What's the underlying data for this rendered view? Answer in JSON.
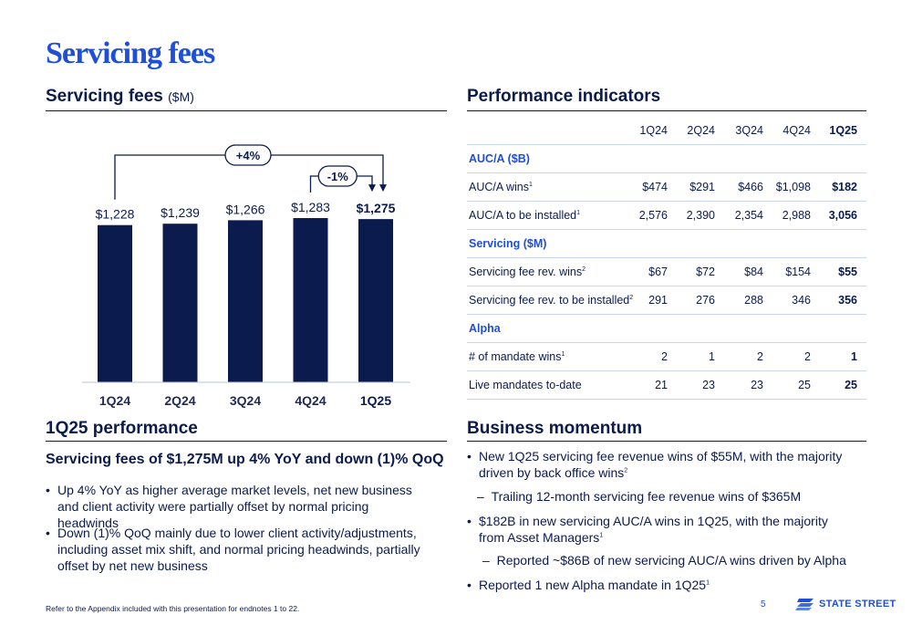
{
  "page": {
    "title": "Servicing fees",
    "footnote": "Refer to the Appendix included with this presentation for endnotes 1 to 22.",
    "page_number": "5",
    "brand": "STATE STREET"
  },
  "left_section": {
    "title": "Servicing fees",
    "unit": "($M)"
  },
  "chart_data": {
    "type": "bar",
    "categories": [
      "1Q24",
      "2Q24",
      "3Q24",
      "4Q24",
      "1Q25"
    ],
    "values": [
      1228,
      1239,
      1266,
      1283,
      1275
    ],
    "labels": [
      "$1,228",
      "$1,239",
      "$1,266",
      "$1,283",
      "$1,275"
    ],
    "bar_color": "#0b1b4d",
    "annotations": [
      {
        "text": "+4%",
        "from": "1Q24",
        "to": "1Q25"
      },
      {
        "text": "-1%",
        "from": "4Q24",
        "to": "1Q25"
      }
    ]
  },
  "performance_indicators": {
    "title": "Performance indicators",
    "columns": [
      "1Q24",
      "2Q24",
      "3Q24",
      "4Q24",
      "1Q25"
    ],
    "rows": [
      {
        "type": "section",
        "label": "AUC/A ($B)"
      },
      {
        "type": "data",
        "label": "AUC/A wins",
        "sup": "1",
        "values": [
          "$474",
          "$291",
          "$466",
          "$1,098",
          "$182"
        ]
      },
      {
        "type": "data",
        "label": "AUC/A to be installed",
        "sup": "1",
        "values": [
          "2,576",
          "2,390",
          "2,354",
          "2,988",
          "3,056"
        ]
      },
      {
        "type": "section",
        "label": "Servicing ($M)"
      },
      {
        "type": "data",
        "label": "Servicing fee rev. wins",
        "sup": "2",
        "values": [
          "$67",
          "$72",
          "$84",
          "$154",
          "$55"
        ]
      },
      {
        "type": "data",
        "label": "Servicing fee rev. to be installed",
        "sup": "2",
        "values": [
          "291",
          "276",
          "288",
          "346",
          "356"
        ]
      },
      {
        "type": "section",
        "label": "Alpha"
      },
      {
        "type": "data",
        "label": "# of mandate wins",
        "sup": "1",
        "values": [
          "2",
          "1",
          "2",
          "2",
          "1"
        ]
      },
      {
        "type": "data",
        "label": "Live mandates to-date",
        "sup": "",
        "values": [
          "21",
          "23",
          "23",
          "25",
          "25"
        ]
      }
    ]
  },
  "performance": {
    "title": "1Q25 performance",
    "headline": "Servicing fees of $1,275M up 4% YoY and down (1)% QoQ",
    "bullets": [
      "Up 4% YoY as higher average market levels, net new business and client activity were partially offset by normal pricing headwinds",
      "Down (1)% QoQ mainly due to lower client activity/adjustments, including asset mix shift, and normal pricing headwinds, partially offset by net new business"
    ]
  },
  "momentum": {
    "title": "Business momentum",
    "b1": "New 1Q25 servicing fee revenue wins of $55M, with the majority driven by back office wins",
    "b1_sup": "2",
    "b1_sub": "Trailing 12-month servicing fee revenue wins of $365M",
    "b2": "$182B in new servicing AUC/A wins in 1Q25, with the majority from Asset Managers",
    "b2_sup": "1",
    "b2_sub": "Reported ~$86B of new servicing AUC/A wins driven by Alpha",
    "b3": "Reported 1 new Alpha mandate in 1Q25",
    "b3_sup": "1"
  }
}
